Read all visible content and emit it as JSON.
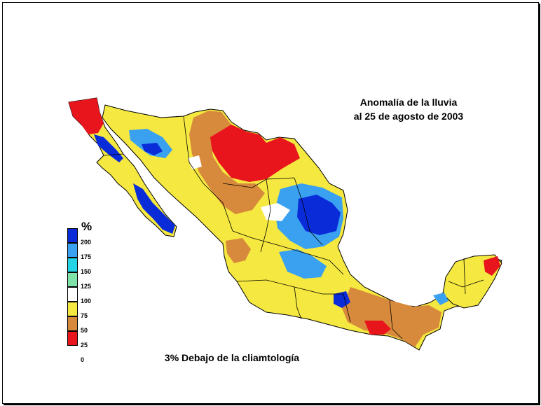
{
  "map": {
    "title_line1": "Anomalía de la lluvia",
    "title_line2": "al 25 de agosto de 2003",
    "summary": "3% Debajo de la cliamtología",
    "legend": {
      "unit": "%",
      "colors": [
        "#0a2cd8",
        "#3aa0f0",
        "#22d4e4",
        "#7fe2a8",
        "#ffffff",
        "#f5e840",
        "#d88a3c",
        "#e8161c"
      ],
      "labels": [
        "200",
        "175",
        "150",
        "125",
        "100",
        "75",
        "50",
        "25",
        "0"
      ]
    }
  }
}
